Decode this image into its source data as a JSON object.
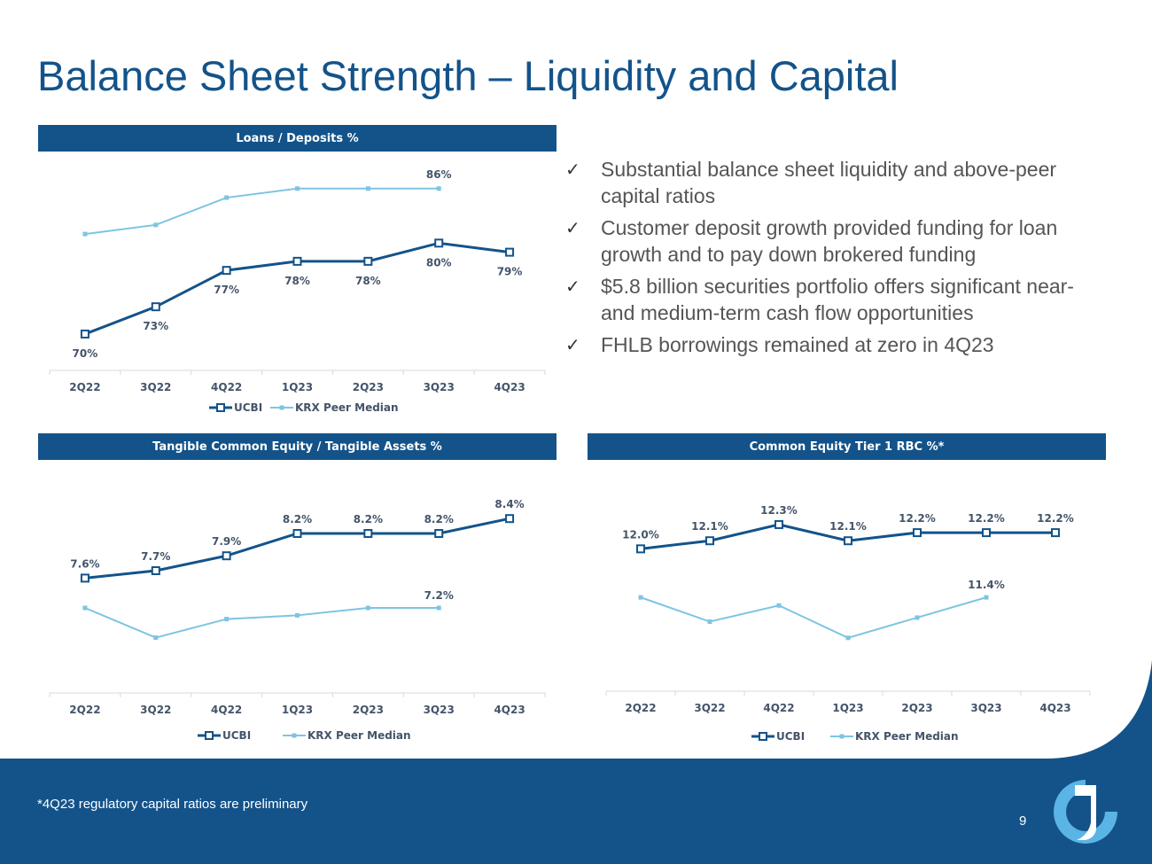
{
  "page": {
    "title": "Balance Sheet Strength – Liquidity and Capital",
    "footnote": "*4Q23 regulatory capital ratios are preliminary",
    "page_number": "9",
    "colors": {
      "brand_blue": "#13538a",
      "ucbi": "#13538a",
      "peer": "#7ec4e2",
      "logo_light": "#5ab4e5"
    }
  },
  "bullets": [
    "Substantial balance sheet liquidity and above-peer capital ratios",
    "Customer deposit growth provided funding for loan growth and to pay down brokered funding",
    "$5.8 billion securities portfolio offers significant near- and medium-term cash flow opportunities",
    "FHLB borrowings remained at zero in 4Q23"
  ],
  "check_glyph": "✓",
  "chart_data": [
    {
      "type": "line",
      "title": "Loans / Deposits %",
      "categories": [
        "2Q22",
        "3Q22",
        "4Q22",
        "1Q23",
        "2Q23",
        "3Q23",
        "4Q23"
      ],
      "series": [
        {
          "name": "UCBI",
          "values": [
            70,
            73,
            77,
            78,
            78,
            80,
            79
          ],
          "labels": [
            "70%",
            "73%",
            "77%",
            "78%",
            "78%",
            "80%",
            "79%"
          ]
        },
        {
          "name": "KRX Peer Median",
          "values": [
            81,
            82,
            85,
            86,
            86,
            86,
            null
          ],
          "labels": [
            "",
            "",
            "",
            "",
            "",
            "86%",
            ""
          ]
        }
      ],
      "legend": "bottom",
      "grid": false
    },
    {
      "type": "line",
      "title": "Tangible Common Equity / Tangible Assets %",
      "categories": [
        "2Q22",
        "3Q22",
        "4Q22",
        "1Q23",
        "2Q23",
        "3Q23",
        "4Q23"
      ],
      "series": [
        {
          "name": "UCBI",
          "values": [
            7.6,
            7.7,
            7.9,
            8.2,
            8.2,
            8.2,
            8.4
          ],
          "labels": [
            "7.6%",
            "7.7%",
            "7.9%",
            "8.2%",
            "8.2%",
            "8.2%",
            "8.4%"
          ]
        },
        {
          "name": "KRX Peer Median",
          "values": [
            7.2,
            6.8,
            7.05,
            7.1,
            7.2,
            7.2,
            null
          ],
          "labels": [
            "",
            "",
            "",
            "",
            "",
            "7.2%",
            ""
          ]
        }
      ],
      "legend": "bottom",
      "grid": false
    },
    {
      "type": "line",
      "title": "Common Equity Tier 1 RBC %*",
      "categories": [
        "2Q22",
        "3Q22",
        "4Q22",
        "1Q23",
        "2Q23",
        "3Q23",
        "4Q23"
      ],
      "series": [
        {
          "name": "UCBI",
          "values": [
            12.0,
            12.1,
            12.3,
            12.1,
            12.2,
            12.2,
            12.2
          ],
          "labels": [
            "12.0%",
            "12.1%",
            "12.3%",
            "12.1%",
            "12.2%",
            "12.2%",
            "12.2%"
          ]
        },
        {
          "name": "KRX Peer Median",
          "values": [
            11.4,
            11.1,
            11.3,
            10.9,
            11.15,
            11.4,
            null
          ],
          "labels": [
            "",
            "",
            "",
            "",
            "",
            "11.4%",
            ""
          ]
        }
      ],
      "legend": "bottom",
      "grid": false
    }
  ]
}
